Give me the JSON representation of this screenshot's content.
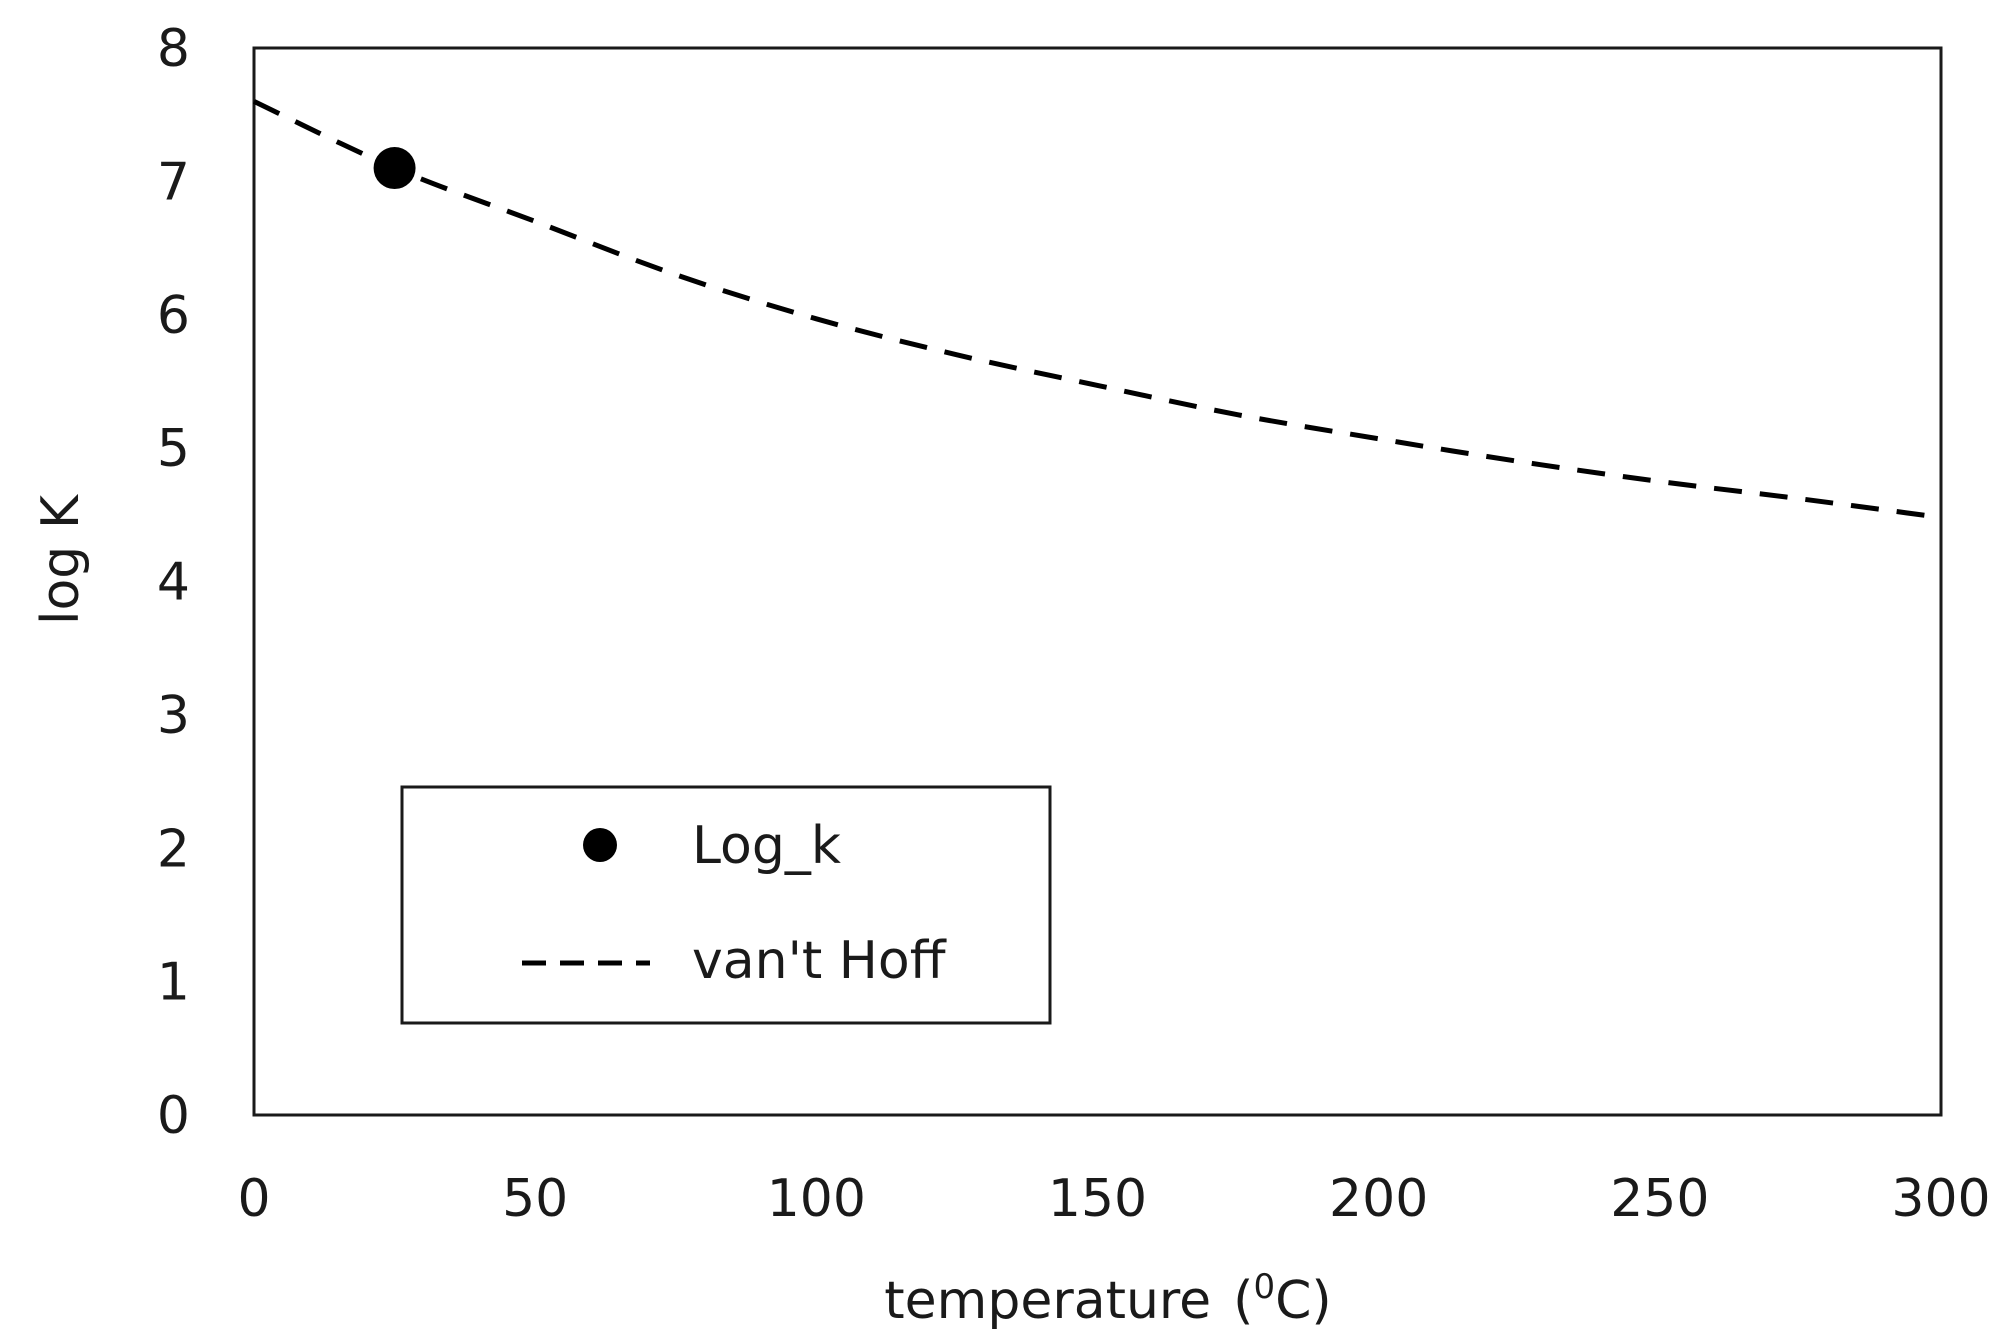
{
  "chart_data": {
    "type": "scatter",
    "title": "",
    "xlabel": "temperature",
    "xlabel_unit_open": "(",
    "xlabel_unit_sup": "0",
    "xlabel_unit_rest": "C)",
    "ylabel": "log K",
    "xlim": [
      0,
      300
    ],
    "ylim": [
      0,
      8
    ],
    "xticks": [
      0,
      50,
      100,
      150,
      200,
      250,
      300
    ],
    "yticks": [
      0,
      1,
      2,
      3,
      4,
      5,
      6,
      7,
      8
    ],
    "grid": false,
    "legend_position": "lower-left (inside)",
    "series": [
      {
        "name": "Log_k",
        "kind": "scatter",
        "marker": "filled-circle",
        "color": "#000000",
        "x": [
          25
        ],
        "y": [
          7.1
        ]
      },
      {
        "name": "van't Hoff",
        "kind": "line",
        "style": "dashed",
        "color": "#000000",
        "x": [
          0,
          25,
          50,
          75,
          100,
          125,
          150,
          175,
          200,
          225,
          250,
          275,
          300
        ],
        "y": [
          7.6,
          7.1,
          6.7,
          6.3,
          5.97,
          5.7,
          5.47,
          5.25,
          5.07,
          4.9,
          4.75,
          4.62,
          4.48
        ]
      }
    ]
  }
}
